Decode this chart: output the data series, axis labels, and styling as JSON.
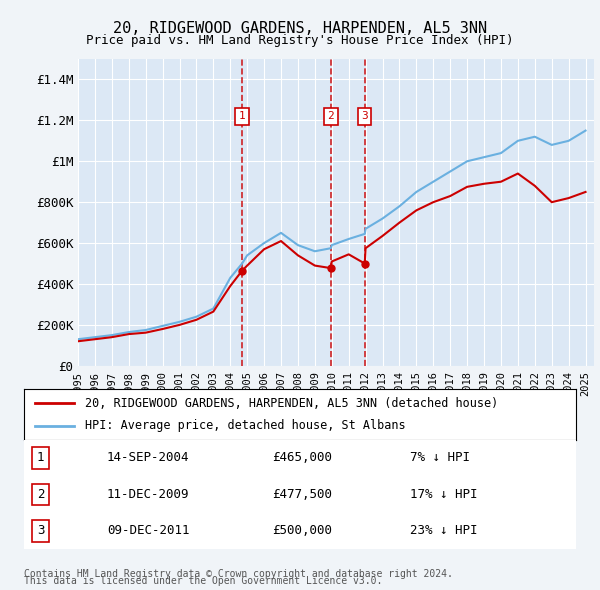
{
  "title": "20, RIDGEWOOD GARDENS, HARPENDEN, AL5 3NN",
  "subtitle": "Price paid vs. HM Land Registry's House Price Index (HPI)",
  "legend_line1": "20, RIDGEWOOD GARDENS, HARPENDEN, AL5 3NN (detached house)",
  "legend_line2": "HPI: Average price, detached house, St Albans",
  "footnote1": "Contains HM Land Registry data © Crown copyright and database right 2024.",
  "footnote2": "This data is licensed under the Open Government Licence v3.0.",
  "transactions": [
    {
      "num": 1,
      "date": "14-SEP-2004",
      "price": "£465,000",
      "pct": "7% ↓ HPI",
      "year": 2004.7
    },
    {
      "num": 2,
      "date": "11-DEC-2009",
      "price": "£477,500",
      "pct": "17% ↓ HPI",
      "year": 2009.95
    },
    {
      "num": 3,
      "date": "09-DEC-2011",
      "price": "£500,000",
      "pct": "23% ↓ HPI",
      "year": 2011.95
    }
  ],
  "transaction_prices": [
    465000,
    477500,
    500000
  ],
  "background_color": "#f0f4f8",
  "plot_bg_color": "#dce8f5",
  "grid_color": "#ffffff",
  "hpi_color": "#6ab0e0",
  "price_color": "#cc0000",
  "dashed_color": "#cc0000",
  "ylim": [
    0,
    1500000
  ],
  "yticks": [
    0,
    200000,
    400000,
    600000,
    800000,
    1000000,
    1200000,
    1400000
  ],
  "ytick_labels": [
    "£0",
    "£200K",
    "£400K",
    "£600K",
    "£800K",
    "£1M",
    "£1.2M",
    "£1.4M"
  ],
  "hpi_years": [
    1995,
    1996,
    1997,
    1998,
    1999,
    2000,
    2001,
    2002,
    2003,
    2004,
    2004.7,
    2005,
    2006,
    2007,
    2008,
    2009,
    2009.95,
    2010,
    2011,
    2011.95,
    2012,
    2013,
    2014,
    2015,
    2016,
    2017,
    2018,
    2019,
    2020,
    2021,
    2022,
    2023,
    2024,
    2025
  ],
  "hpi_values": [
    130000,
    140000,
    150000,
    165000,
    175000,
    195000,
    215000,
    240000,
    280000,
    430000,
    500000,
    540000,
    600000,
    650000,
    590000,
    560000,
    575000,
    590000,
    620000,
    645000,
    670000,
    720000,
    780000,
    850000,
    900000,
    950000,
    1000000,
    1020000,
    1040000,
    1100000,
    1120000,
    1080000,
    1100000,
    1150000
  ],
  "price_years": [
    1995,
    1996,
    1997,
    1998,
    1999,
    2000,
    2001,
    2002,
    2003,
    2004,
    2004.7,
    2005,
    2006,
    2007,
    2008,
    2009,
    2009.95,
    2010,
    2011,
    2011.95,
    2012,
    2013,
    2014,
    2015,
    2016,
    2017,
    2018,
    2019,
    2020,
    2021,
    2022,
    2023,
    2024,
    2025
  ],
  "price_values": [
    120000,
    130000,
    140000,
    155000,
    162000,
    180000,
    200000,
    225000,
    265000,
    390000,
    465000,
    490000,
    570000,
    610000,
    540000,
    490000,
    477500,
    510000,
    545000,
    500000,
    575000,
    635000,
    700000,
    760000,
    800000,
    830000,
    875000,
    890000,
    900000,
    940000,
    880000,
    800000,
    820000,
    850000
  ],
  "xtick_years": [
    1995,
    1996,
    1997,
    1998,
    1999,
    2000,
    2001,
    2002,
    2003,
    2004,
    2005,
    2006,
    2007,
    2008,
    2009,
    2010,
    2011,
    2012,
    2013,
    2014,
    2015,
    2016,
    2017,
    2018,
    2019,
    2020,
    2021,
    2022,
    2023,
    2024,
    2025
  ]
}
